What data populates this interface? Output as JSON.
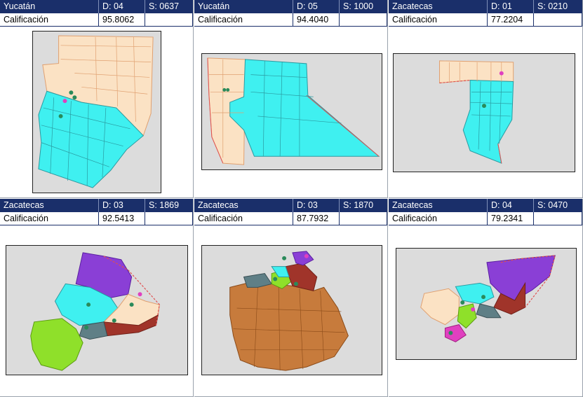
{
  "panels": [
    {
      "state": "Yucatán",
      "district": "D: 04",
      "section": "S: 0637",
      "score_label": "Calificación",
      "score": "95.8062"
    },
    {
      "state": "Yucatán",
      "district": "D: 05",
      "section": "S: 1000",
      "score_label": "Calificación",
      "score": "94.4040"
    },
    {
      "state": "Zacatecas",
      "district": "D: 01",
      "section": "S: 0210",
      "score_label": "Calificación",
      "score": "77.2204"
    },
    {
      "state": "Zacatecas",
      "district": "D: 03",
      "section": "S: 1869",
      "score_label": "Calificación",
      "score": "92.5413"
    },
    {
      "state": "Zacatecas",
      "district": "D: 03",
      "section": "S: 1870",
      "score_label": "Calificación",
      "score": "87.7932"
    },
    {
      "state": "Zacatecas",
      "district": "D: 04",
      "section": "S: 0470",
      "score_label": "Calificación",
      "score": "79.2341"
    }
  ],
  "colors": {
    "header_bg": "#1a2f6a",
    "cyan": "#3ff0f0",
    "beige": "#fbe2c4",
    "purple": "#8a3fd6",
    "brown": "#c77b3c",
    "lime": "#8fe02a",
    "darkred": "#a0342a",
    "slate": "#5f7f86",
    "magenta": "#e040c0"
  }
}
